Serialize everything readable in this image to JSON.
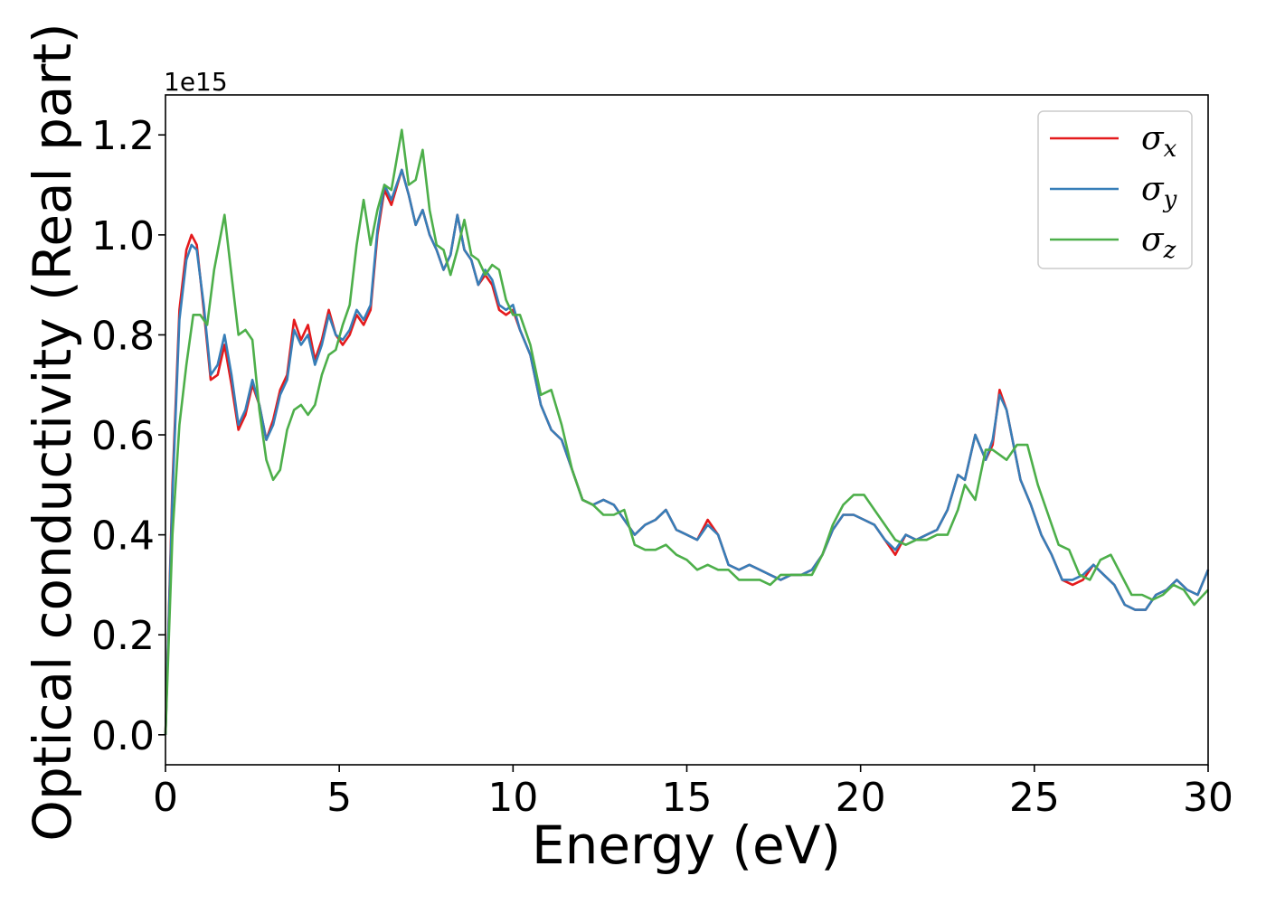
{
  "chart_data": {
    "type": "line",
    "title": "",
    "xlabel": "Energy (eV)",
    "ylabel": "Optical conductivity (Real part)",
    "y_offset_label": "1e15",
    "xlim": [
      0,
      30
    ],
    "ylim": [
      -0.06,
      1.28
    ],
    "xticks": [
      0,
      5,
      10,
      15,
      20,
      25,
      30
    ],
    "yticks": [
      "0.0",
      "0.2",
      "0.4",
      "0.6",
      "0.8",
      "1.0",
      "1.2"
    ],
    "yticks_values": [
      0.0,
      0.2,
      0.4,
      0.6,
      0.8,
      1.0,
      1.2
    ],
    "grid": false,
    "legend_position": "top-right",
    "series": [
      {
        "name": "σx",
        "legend_symbol": "σ",
        "legend_sub": "x",
        "color": "#e41a1c",
        "x": [
          0,
          0.2,
          0.4,
          0.6,
          0.75,
          0.9,
          1.1,
          1.3,
          1.5,
          1.7,
          1.9,
          2.1,
          2.3,
          2.5,
          2.7,
          2.9,
          3.1,
          3.3,
          3.5,
          3.7,
          3.9,
          4.1,
          4.3,
          4.5,
          4.7,
          4.9,
          5.1,
          5.3,
          5.5,
          5.7,
          5.9,
          6.1,
          6.3,
          6.5,
          6.8,
          7.0,
          7.2,
          7.4,
          7.6,
          7.8,
          8.0,
          8.2,
          8.4,
          8.6,
          8.8,
          9.0,
          9.2,
          9.4,
          9.6,
          9.8,
          10.0,
          10.2,
          10.5,
          10.8,
          11.1,
          11.4,
          11.7,
          12.0,
          12.3,
          12.6,
          12.9,
          13.2,
          13.5,
          13.8,
          14.1,
          14.4,
          14.7,
          15.0,
          15.3,
          15.6,
          15.9,
          16.2,
          16.5,
          16.8,
          17.1,
          17.4,
          17.7,
          18.0,
          18.3,
          18.6,
          18.9,
          19.2,
          19.5,
          19.8,
          20.1,
          20.4,
          20.7,
          21.0,
          21.3,
          21.6,
          21.9,
          22.2,
          22.5,
          22.8,
          23.0,
          23.3,
          23.6,
          23.8,
          24.0,
          24.2,
          24.4,
          24.6,
          24.9,
          25.2,
          25.5,
          25.8,
          26.1,
          26.4,
          26.7,
          27.0,
          27.3,
          27.6,
          27.9,
          28.2,
          28.5,
          28.8,
          29.1,
          29.4,
          29.7,
          30.0
        ],
        "y": [
          0.0,
          0.5,
          0.85,
          0.97,
          1.0,
          0.98,
          0.85,
          0.71,
          0.72,
          0.78,
          0.7,
          0.61,
          0.64,
          0.7,
          0.66,
          0.59,
          0.63,
          0.69,
          0.72,
          0.83,
          0.79,
          0.82,
          0.75,
          0.79,
          0.85,
          0.8,
          0.78,
          0.8,
          0.84,
          0.82,
          0.85,
          1.0,
          1.09,
          1.06,
          1.13,
          1.08,
          1.02,
          1.05,
          1.0,
          0.97,
          0.93,
          0.96,
          1.04,
          0.97,
          0.95,
          0.9,
          0.92,
          0.9,
          0.85,
          0.84,
          0.85,
          0.81,
          0.76,
          0.66,
          0.61,
          0.59,
          0.53,
          0.47,
          0.46,
          0.47,
          0.46,
          0.43,
          0.4,
          0.42,
          0.43,
          0.45,
          0.41,
          0.4,
          0.39,
          0.43,
          0.4,
          0.34,
          0.33,
          0.34,
          0.33,
          0.32,
          0.31,
          0.32,
          0.32,
          0.33,
          0.36,
          0.41,
          0.44,
          0.44,
          0.43,
          0.42,
          0.39,
          0.36,
          0.4,
          0.39,
          0.4,
          0.41,
          0.45,
          0.52,
          0.51,
          0.6,
          0.55,
          0.58,
          0.69,
          0.65,
          0.58,
          0.51,
          0.46,
          0.4,
          0.36,
          0.31,
          0.3,
          0.31,
          0.34,
          0.32,
          0.3,
          0.26,
          0.25,
          0.25,
          0.28,
          0.29,
          0.31,
          0.29,
          0.28,
          0.33
        ]
      },
      {
        "name": "σy",
        "legend_symbol": "σ",
        "legend_sub": "y",
        "color": "#377eb8",
        "x": [
          0,
          0.2,
          0.4,
          0.6,
          0.75,
          0.9,
          1.1,
          1.3,
          1.5,
          1.7,
          1.9,
          2.1,
          2.3,
          2.5,
          2.7,
          2.9,
          3.1,
          3.3,
          3.5,
          3.7,
          3.9,
          4.1,
          4.3,
          4.5,
          4.7,
          4.9,
          5.1,
          5.3,
          5.5,
          5.7,
          5.9,
          6.1,
          6.3,
          6.5,
          6.8,
          7.0,
          7.2,
          7.4,
          7.6,
          7.8,
          8.0,
          8.2,
          8.4,
          8.6,
          8.8,
          9.0,
          9.2,
          9.4,
          9.6,
          9.8,
          10.0,
          10.2,
          10.5,
          10.8,
          11.1,
          11.4,
          11.7,
          12.0,
          12.3,
          12.6,
          12.9,
          13.2,
          13.5,
          13.8,
          14.1,
          14.4,
          14.7,
          15.0,
          15.3,
          15.6,
          15.9,
          16.2,
          16.5,
          16.8,
          17.1,
          17.4,
          17.7,
          18.0,
          18.3,
          18.6,
          18.9,
          19.2,
          19.5,
          19.8,
          20.1,
          20.4,
          20.7,
          21.0,
          21.3,
          21.6,
          21.9,
          22.2,
          22.5,
          22.8,
          23.0,
          23.3,
          23.6,
          23.8,
          24.0,
          24.2,
          24.4,
          24.6,
          24.9,
          25.2,
          25.5,
          25.8,
          26.1,
          26.4,
          26.7,
          27.0,
          27.3,
          27.6,
          27.9,
          28.2,
          28.5,
          28.8,
          29.1,
          29.4,
          29.7,
          30.0
        ],
        "y": [
          0.0,
          0.48,
          0.83,
          0.95,
          0.98,
          0.97,
          0.86,
          0.72,
          0.74,
          0.8,
          0.72,
          0.62,
          0.65,
          0.71,
          0.66,
          0.59,
          0.62,
          0.68,
          0.71,
          0.81,
          0.78,
          0.8,
          0.74,
          0.78,
          0.84,
          0.8,
          0.79,
          0.81,
          0.85,
          0.83,
          0.86,
          1.01,
          1.1,
          1.07,
          1.13,
          1.08,
          1.02,
          1.05,
          1.0,
          0.97,
          0.93,
          0.96,
          1.04,
          0.97,
          0.95,
          0.9,
          0.93,
          0.91,
          0.86,
          0.85,
          0.86,
          0.81,
          0.76,
          0.66,
          0.61,
          0.59,
          0.53,
          0.47,
          0.46,
          0.47,
          0.46,
          0.43,
          0.4,
          0.42,
          0.43,
          0.45,
          0.41,
          0.4,
          0.39,
          0.42,
          0.4,
          0.34,
          0.33,
          0.34,
          0.33,
          0.32,
          0.31,
          0.32,
          0.32,
          0.33,
          0.36,
          0.41,
          0.44,
          0.44,
          0.43,
          0.42,
          0.39,
          0.37,
          0.4,
          0.39,
          0.4,
          0.41,
          0.45,
          0.52,
          0.51,
          0.6,
          0.55,
          0.59,
          0.68,
          0.65,
          0.58,
          0.51,
          0.46,
          0.4,
          0.36,
          0.31,
          0.31,
          0.32,
          0.34,
          0.32,
          0.3,
          0.26,
          0.25,
          0.25,
          0.28,
          0.29,
          0.31,
          0.29,
          0.28,
          0.33
        ]
      },
      {
        "name": "σz",
        "legend_symbol": "σ",
        "legend_sub": "z",
        "color": "#4daf4a",
        "x": [
          0,
          0.2,
          0.4,
          0.6,
          0.8,
          1.0,
          1.2,
          1.4,
          1.7,
          1.9,
          2.1,
          2.3,
          2.5,
          2.7,
          2.9,
          3.1,
          3.3,
          3.5,
          3.7,
          3.9,
          4.1,
          4.3,
          4.5,
          4.7,
          4.9,
          5.1,
          5.3,
          5.5,
          5.7,
          5.9,
          6.1,
          6.3,
          6.5,
          6.8,
          7.0,
          7.2,
          7.4,
          7.6,
          7.8,
          8.0,
          8.2,
          8.4,
          8.6,
          8.8,
          9.0,
          9.2,
          9.4,
          9.6,
          9.8,
          10.0,
          10.2,
          10.5,
          10.8,
          11.1,
          11.4,
          11.7,
          12.0,
          12.3,
          12.6,
          12.9,
          13.2,
          13.5,
          13.8,
          14.1,
          14.4,
          14.7,
          15.0,
          15.3,
          15.6,
          15.9,
          16.2,
          16.5,
          16.8,
          17.1,
          17.4,
          17.7,
          18.0,
          18.3,
          18.6,
          18.9,
          19.2,
          19.5,
          19.8,
          20.1,
          20.4,
          20.7,
          21.0,
          21.3,
          21.6,
          21.9,
          22.2,
          22.5,
          22.8,
          23.0,
          23.3,
          23.6,
          23.8,
          24.0,
          24.2,
          24.5,
          24.8,
          25.1,
          25.4,
          25.7,
          26.0,
          26.3,
          26.6,
          26.9,
          27.2,
          27.5,
          27.8,
          28.1,
          28.4,
          28.7,
          29.0,
          29.3,
          29.6,
          30.0
        ],
        "y": [
          0.0,
          0.4,
          0.62,
          0.74,
          0.84,
          0.84,
          0.82,
          0.93,
          1.04,
          0.92,
          0.8,
          0.81,
          0.79,
          0.65,
          0.55,
          0.51,
          0.53,
          0.61,
          0.65,
          0.66,
          0.64,
          0.66,
          0.72,
          0.76,
          0.77,
          0.82,
          0.86,
          0.98,
          1.07,
          0.98,
          1.05,
          1.1,
          1.09,
          1.21,
          1.1,
          1.11,
          1.17,
          1.05,
          0.98,
          0.97,
          0.92,
          0.97,
          1.03,
          0.96,
          0.95,
          0.92,
          0.94,
          0.93,
          0.87,
          0.84,
          0.84,
          0.78,
          0.68,
          0.69,
          0.62,
          0.53,
          0.47,
          0.46,
          0.44,
          0.44,
          0.45,
          0.38,
          0.37,
          0.37,
          0.38,
          0.36,
          0.35,
          0.33,
          0.34,
          0.33,
          0.33,
          0.31,
          0.31,
          0.31,
          0.3,
          0.32,
          0.32,
          0.32,
          0.32,
          0.36,
          0.42,
          0.46,
          0.48,
          0.48,
          0.45,
          0.42,
          0.39,
          0.38,
          0.39,
          0.39,
          0.4,
          0.4,
          0.45,
          0.5,
          0.47,
          0.57,
          0.57,
          0.56,
          0.55,
          0.58,
          0.58,
          0.5,
          0.44,
          0.38,
          0.37,
          0.32,
          0.31,
          0.35,
          0.36,
          0.32,
          0.28,
          0.28,
          0.27,
          0.28,
          0.3,
          0.29,
          0.26,
          0.29
        ]
      }
    ]
  }
}
